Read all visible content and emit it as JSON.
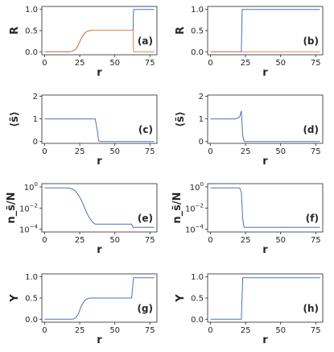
{
  "colors": {
    "blue": "#4c72b0",
    "orange": "#dd8452"
  },
  "chart_data": [
    {
      "type": "line",
      "panel": "(a)",
      "xlabel": "r",
      "ylabel": "R",
      "xlim": [
        -2,
        80
      ],
      "ylim": [
        -0.07,
        1.07
      ],
      "xticks": [
        0,
        25,
        50,
        75
      ],
      "yticks": [
        0.0,
        0.5,
        1.0
      ],
      "ytick_labels": [
        "0.0",
        "0.5",
        "1.0"
      ],
      "series": [
        {
          "color": "blue",
          "x": [
            0,
            18,
            20,
            22,
            24,
            26,
            28,
            30,
            32,
            34,
            36,
            40,
            63,
            63.3,
            78
          ],
          "y": [
            0,
            0,
            0.02,
            0.06,
            0.16,
            0.31,
            0.42,
            0.48,
            0.5,
            0.51,
            0.51,
            0.51,
            0.51,
            1.0,
            1.0
          ]
        },
        {
          "color": "orange",
          "x": [
            0,
            18,
            20,
            22,
            24,
            26,
            28,
            30,
            32,
            34,
            36,
            40,
            63,
            63.3,
            78
          ],
          "y": [
            0,
            0,
            0.02,
            0.06,
            0.16,
            0.31,
            0.42,
            0.48,
            0.5,
            0.51,
            0.51,
            0.51,
            0.51,
            0.0,
            0.0
          ]
        }
      ]
    },
    {
      "type": "line",
      "panel": "(b)",
      "xlabel": "r",
      "ylabel": "R",
      "xlim": [
        -2,
        80
      ],
      "ylim": [
        -0.07,
        1.07
      ],
      "xticks": [
        0,
        25,
        50,
        75
      ],
      "yticks": [
        0.0,
        0.5,
        1.0
      ],
      "ytick_labels": [
        "0.0",
        "0.5",
        "1.0"
      ],
      "series": [
        {
          "color": "blue",
          "x": [
            0,
            22,
            22.6,
            78
          ],
          "y": [
            0,
            0,
            1.0,
            1.0
          ]
        },
        {
          "color": "orange",
          "x": [
            0,
            22,
            22.6,
            78
          ],
          "y": [
            0,
            0,
            0.0,
            0.0
          ]
        }
      ]
    },
    {
      "type": "line",
      "panel": "(c)",
      "xlabel": "r",
      "ylabel": "⟨s̄⟩",
      "xlim": [
        -2,
        80
      ],
      "ylim": [
        -0.08,
        2.05
      ],
      "xticks": [
        0,
        25,
        50,
        75
      ],
      "yticks": [
        0,
        1,
        2
      ],
      "ytick_labels": [
        "0",
        "1",
        "2"
      ],
      "series": [
        {
          "color": "blue",
          "x": [
            0,
            36,
            37.5,
            38.5,
            40,
            78
          ],
          "y": [
            1,
            1,
            0.5,
            0.03,
            0,
            0
          ]
        }
      ]
    },
    {
      "type": "line",
      "panel": "(d)",
      "xlabel": "r",
      "ylabel": "⟨s̄⟩",
      "xlim": [
        -2,
        80
      ],
      "ylim": [
        -0.08,
        2.05
      ],
      "xticks": [
        0,
        25,
        50,
        75
      ],
      "yticks": [
        0,
        1,
        2
      ],
      "ytick_labels": [
        "0",
        "1",
        "2"
      ],
      "series": [
        {
          "color": "blue",
          "x": [
            0,
            18,
            20,
            21,
            22,
            23,
            24,
            78
          ],
          "y": [
            1,
            1,
            1.05,
            1.12,
            1.35,
            0.25,
            0,
            0
          ]
        }
      ]
    },
    {
      "type": "line",
      "panel": "(e)",
      "xlabel": "r",
      "ylabel": "n_s̄/N",
      "yscale": "log",
      "xlim": [
        -2,
        80
      ],
      "ylim": [
        5.5e-05,
        2.0
      ],
      "xticks": [
        0,
        25,
        50,
        75
      ],
      "yticks": [
        1,
        0.01,
        0.0001
      ],
      "ytick_exponents": [
        "0",
        "−2",
        "−4"
      ],
      "series": [
        {
          "color": "blue",
          "x": [
            0,
            15,
            18,
            20,
            22,
            24,
            26,
            28,
            30,
            32,
            34,
            35,
            36,
            38,
            62,
            63,
            78
          ],
          "y": [
            0.8,
            0.8,
            0.75,
            0.6,
            0.4,
            0.18,
            0.06,
            0.015,
            0.0035,
            0.0011,
            0.0005,
            0.00038,
            0.0003,
            0.0003,
            0.0003,
            0.00015,
            0.00015
          ]
        }
      ]
    },
    {
      "type": "line",
      "panel": "(f)",
      "xlabel": "r",
      "ylabel": "n_s̄/N",
      "yscale": "log",
      "xlim": [
        -2,
        80
      ],
      "ylim": [
        5.5e-05,
        2.0
      ],
      "xticks": [
        0,
        25,
        50,
        75
      ],
      "yticks": [
        1,
        0.01,
        0.0001
      ],
      "ytick_exponents": [
        "0",
        "−2",
        "−4"
      ],
      "series": [
        {
          "color": "blue",
          "x": [
            0,
            20,
            21,
            22,
            23,
            24,
            78
          ],
          "y": [
            0.8,
            0.8,
            0.7,
            0.3,
            0.001,
            0.00015,
            0.00015
          ]
        }
      ]
    },
    {
      "type": "line",
      "panel": "(g)",
      "xlabel": "r",
      "ylabel": "Y",
      "xlim": [
        -2,
        80
      ],
      "ylim": [
        -0.07,
        1.07
      ],
      "xticks": [
        0,
        25,
        50,
        75
      ],
      "yticks": [
        0.0,
        0.5,
        1.0
      ],
      "ytick_labels": [
        "0.0",
        "0.5",
        "1.0"
      ],
      "series": [
        {
          "color": "blue",
          "x": [
            0,
            20,
            22,
            24,
            26,
            28,
            30,
            32,
            34,
            40,
            62,
            63.3,
            78
          ],
          "y": [
            0,
            0,
            0.03,
            0.12,
            0.3,
            0.42,
            0.48,
            0.5,
            0.5,
            0.5,
            0.5,
            0.98,
            0.98
          ]
        }
      ]
    },
    {
      "type": "line",
      "panel": "(h)",
      "xlabel": "r",
      "ylabel": "Y",
      "xlim": [
        -2,
        80
      ],
      "ylim": [
        -0.07,
        1.07
      ],
      "xticks": [
        0,
        25,
        50,
        75
      ],
      "yticks": [
        0.0,
        0.5,
        1.0
      ],
      "ytick_labels": [
        "0.0",
        "0.5",
        "1.0"
      ],
      "series": [
        {
          "color": "blue",
          "x": [
            0,
            22,
            23,
            78
          ],
          "y": [
            0,
            0,
            0.98,
            0.98
          ]
        }
      ]
    }
  ]
}
